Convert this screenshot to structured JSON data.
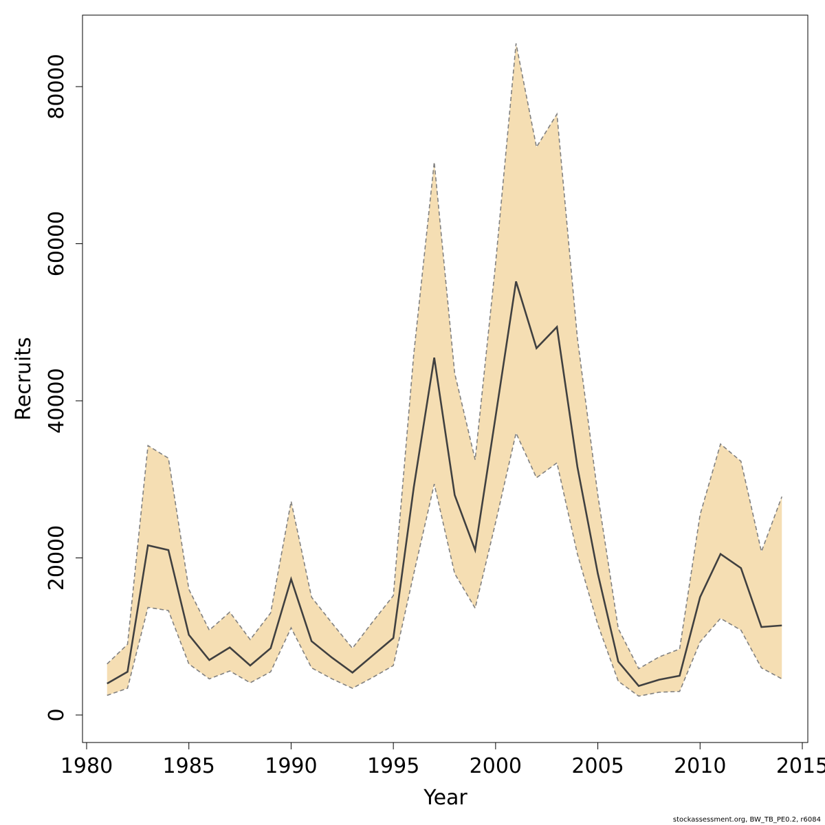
{
  "chart_data": {
    "type": "area",
    "xlabel": "Year",
    "ylabel": "Recruits",
    "xlim": [
      1980,
      2015
    ],
    "ylim": [
      -3500,
      89000
    ],
    "x_ticks": [
      1980,
      1985,
      1990,
      1995,
      2000,
      2005,
      2010,
      2015
    ],
    "y_ticks": [
      0,
      20000,
      40000,
      60000,
      80000
    ],
    "grid": false,
    "colors": {
      "band": "#f5deb3",
      "line": "#404040",
      "bound": "#808080"
    },
    "x": [
      1981,
      1982,
      1983,
      1984,
      1985,
      1986,
      1987,
      1988,
      1989,
      1990,
      1991,
      1992,
      1993,
      1994,
      1995,
      1996,
      1997,
      1998,
      1999,
      2000,
      2001,
      2002,
      2003,
      2004,
      2005,
      2006,
      2007,
      2008,
      2009,
      2010,
      2011,
      2012,
      2013,
      2014
    ],
    "series": [
      {
        "role": "estimate",
        "values": [
          4000,
          5500,
          21600,
          21000,
          10200,
          7000,
          8600,
          6300,
          8500,
          17300,
          9400,
          7300,
          5400,
          7600,
          9800,
          29000,
          45500,
          28000,
          21000,
          38000,
          55200,
          46700,
          49400,
          31600,
          18000,
          6800,
          3700,
          4500,
          5000,
          15000,
          20500,
          18700,
          11200,
          11400
        ]
      },
      {
        "role": "upper",
        "values": [
          6500,
          9000,
          34300,
          32700,
          16000,
          10800,
          13100,
          9600,
          13000,
          27200,
          15000,
          11700,
          8500,
          11900,
          15200,
          46000,
          70400,
          43500,
          32500,
          57500,
          85500,
          72300,
          76500,
          48000,
          28000,
          11000,
          5900,
          7400,
          8400,
          25500,
          34500,
          32300,
          20800,
          27800
        ]
      },
      {
        "role": "lower",
        "values": [
          2500,
          3400,
          13700,
          13300,
          6500,
          4600,
          5600,
          4100,
          5500,
          11100,
          6000,
          4600,
          3400,
          4800,
          6300,
          18000,
          29400,
          18000,
          13600,
          24500,
          35900,
          30200,
          32100,
          20500,
          11500,
          4300,
          2400,
          2900,
          3000,
          9300,
          12300,
          10800,
          6000,
          4600
        ]
      }
    ]
  },
  "footer_text": "stockassessment.org, BW_TB_PE0.2, r6084"
}
